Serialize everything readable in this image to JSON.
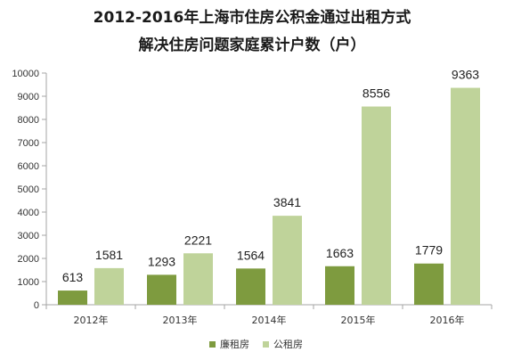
{
  "title_line1": "2012-2016年上海市住房公积金通过出租方式",
  "title_line2": "解决住房问题家庭累计户数（户）",
  "colors": {
    "series1": "#7e9b3f",
    "series2": "#bfd39a",
    "axis": "#a6a6a6",
    "grid": "#d9d9d9"
  },
  "chart_data": {
    "type": "bar",
    "title": "2012-2016年上海市住房公积金通过出租方式 解决住房问题家庭累计户数（户）",
    "categories": [
      "2012年",
      "2013年",
      "2014年",
      "2015年",
      "2016年"
    ],
    "series": [
      {
        "name": "廉租房",
        "values": [
          613,
          1293,
          1564,
          1663,
          1779
        ]
      },
      {
        "name": "公租房",
        "values": [
          1581,
          2221,
          3841,
          8556,
          9363
        ]
      }
    ],
    "ylim": [
      0,
      10000
    ],
    "yticks": [
      "0",
      "1000",
      "2000",
      "3000",
      "4000",
      "5000",
      "6000",
      "7000",
      "8000",
      "9000",
      "10000"
    ],
    "grid": false,
    "legend_position": "bottom"
  }
}
